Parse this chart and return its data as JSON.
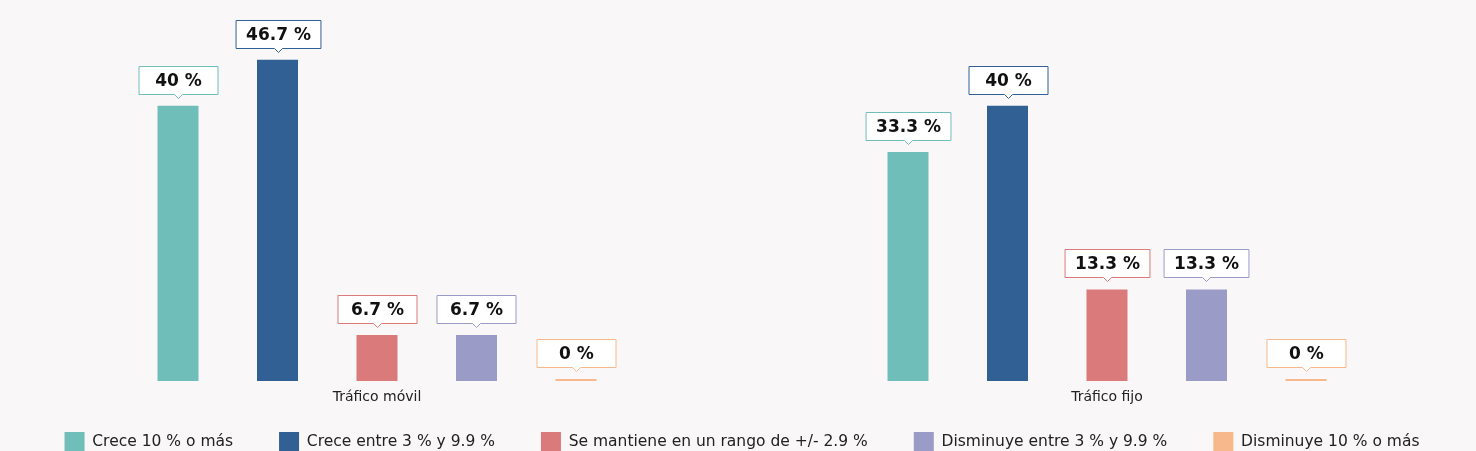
{
  "chart_data": {
    "type": "bar",
    "categories": [
      "Tráfico móvil",
      "Tráfico fijo"
    ],
    "series": [
      {
        "name": "Crece 10 % o más",
        "color": "#70beb9",
        "values": [
          40,
          33.3
        ],
        "value_labels": [
          "40 %",
          "33.3 %"
        ]
      },
      {
        "name": "Crece entre 3 % y 9.9 %",
        "color": "#316194",
        "values": [
          46.7,
          40
        ],
        "value_labels": [
          "46.7 %",
          "40 %"
        ]
      },
      {
        "name": "Se mantiene en un rango de +/- 2.9 %",
        "color": "#db7a7a",
        "values": [
          6.7,
          13.3
        ],
        "value_labels": [
          "6.7 %",
          "13.3 %"
        ]
      },
      {
        "name": "Disminuye entre 3 % y 9.9 %",
        "color": "#9b9bc8",
        "values": [
          6.7,
          13.3
        ],
        "value_labels": [
          "6.7 %",
          "13.3 %"
        ]
      },
      {
        "name": "Disminuye 10 % o más",
        "color": "#f7b98b",
        "values": [
          0,
          0
        ],
        "value_labels": [
          "0 %",
          "0 %"
        ]
      }
    ],
    "tick_labels": "x",
    "legend": "bottom"
  }
}
